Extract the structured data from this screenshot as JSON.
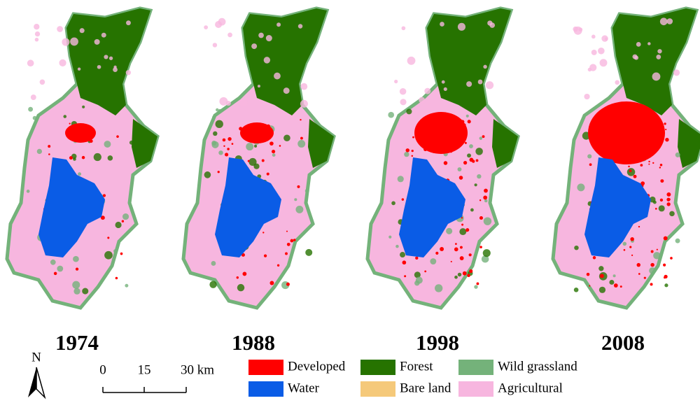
{
  "maps": [
    {
      "year": "1974"
    },
    {
      "year": "1988"
    },
    {
      "year": "1998"
    },
    {
      "year": "2008"
    }
  ],
  "north_arrow": {
    "label": "N"
  },
  "scale_bar": {
    "ticks": [
      "0",
      "15",
      "30 km"
    ]
  },
  "legend": [
    {
      "label": "Developed",
      "color": "#ff0000"
    },
    {
      "label": "Water",
      "color": "#0a5ce6"
    },
    {
      "label": "Forest",
      "color": "#267300"
    },
    {
      "label": "Bare land",
      "color": "#f5c97a"
    },
    {
      "label": "Wild grassland",
      "color": "#74b27a"
    },
    {
      "label": "Agricultural",
      "color": "#f7b6df"
    }
  ]
}
